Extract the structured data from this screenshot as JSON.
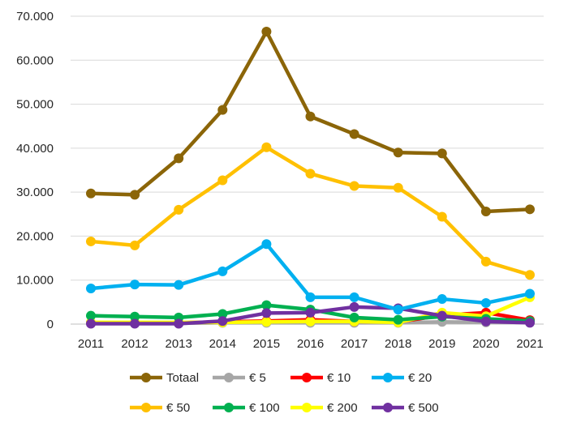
{
  "chart_data": {
    "type": "line",
    "x": [
      "2011",
      "2012",
      "2013",
      "2014",
      "2015",
      "2016",
      "2017",
      "2018",
      "2019",
      "2020",
      "2021"
    ],
    "ylim": [
      0,
      70000
    ],
    "yticks": [
      0,
      10000,
      20000,
      30000,
      40000,
      50000,
      60000,
      70000
    ],
    "ytick_labels": [
      "0",
      "10.000",
      "20.000",
      "30.000",
      "40.000",
      "50.000",
      "60.000",
      "70.000"
    ],
    "grid": true,
    "legend_position": "bottom",
    "series": [
      {
        "name": "Totaal",
        "color": "#8B6508",
        "values": [
          29700,
          29400,
          37700,
          48700,
          66500,
          47200,
          43200,
          39000,
          38800,
          25600,
          26100
        ]
      },
      {
        "name": "€ 5",
        "color": "#A6A6A6",
        "values": [
          200,
          200,
          200,
          300,
          300,
          300,
          300,
          300,
          500,
          400,
          400
        ]
      },
      {
        "name": "€ 10",
        "color": "#FF0000",
        "values": [
          300,
          300,
          300,
          500,
          700,
          1000,
          600,
          500,
          2000,
          2600,
          900
        ]
      },
      {
        "name": "€ 20",
        "color": "#00B0F0",
        "values": [
          8100,
          9000,
          8900,
          12000,
          18200,
          6100,
          6100,
          3300,
          5700,
          4800,
          6900
        ]
      },
      {
        "name": "€ 50",
        "color": "#FFC000",
        "values": [
          18800,
          17900,
          26000,
          32700,
          40200,
          34200,
          31400,
          31000,
          24400,
          14200,
          11200
        ]
      },
      {
        "name": "€ 100",
        "color": "#00B050",
        "values": [
          1900,
          1700,
          1500,
          2300,
          4300,
          3300,
          1500,
          1000,
          1700,
          1200,
          700
        ]
      },
      {
        "name": "€ 200",
        "color": "#FFFF00",
        "values": [
          400,
          400,
          400,
          400,
          500,
          600,
          600,
          400,
          2600,
          1800,
          6100
        ]
      },
      {
        "name": "€ 500",
        "color": "#7030A0",
        "values": [
          100,
          100,
          100,
          700,
          2500,
          2600,
          3900,
          3600,
          1900,
          600,
          300
        ]
      }
    ]
  }
}
